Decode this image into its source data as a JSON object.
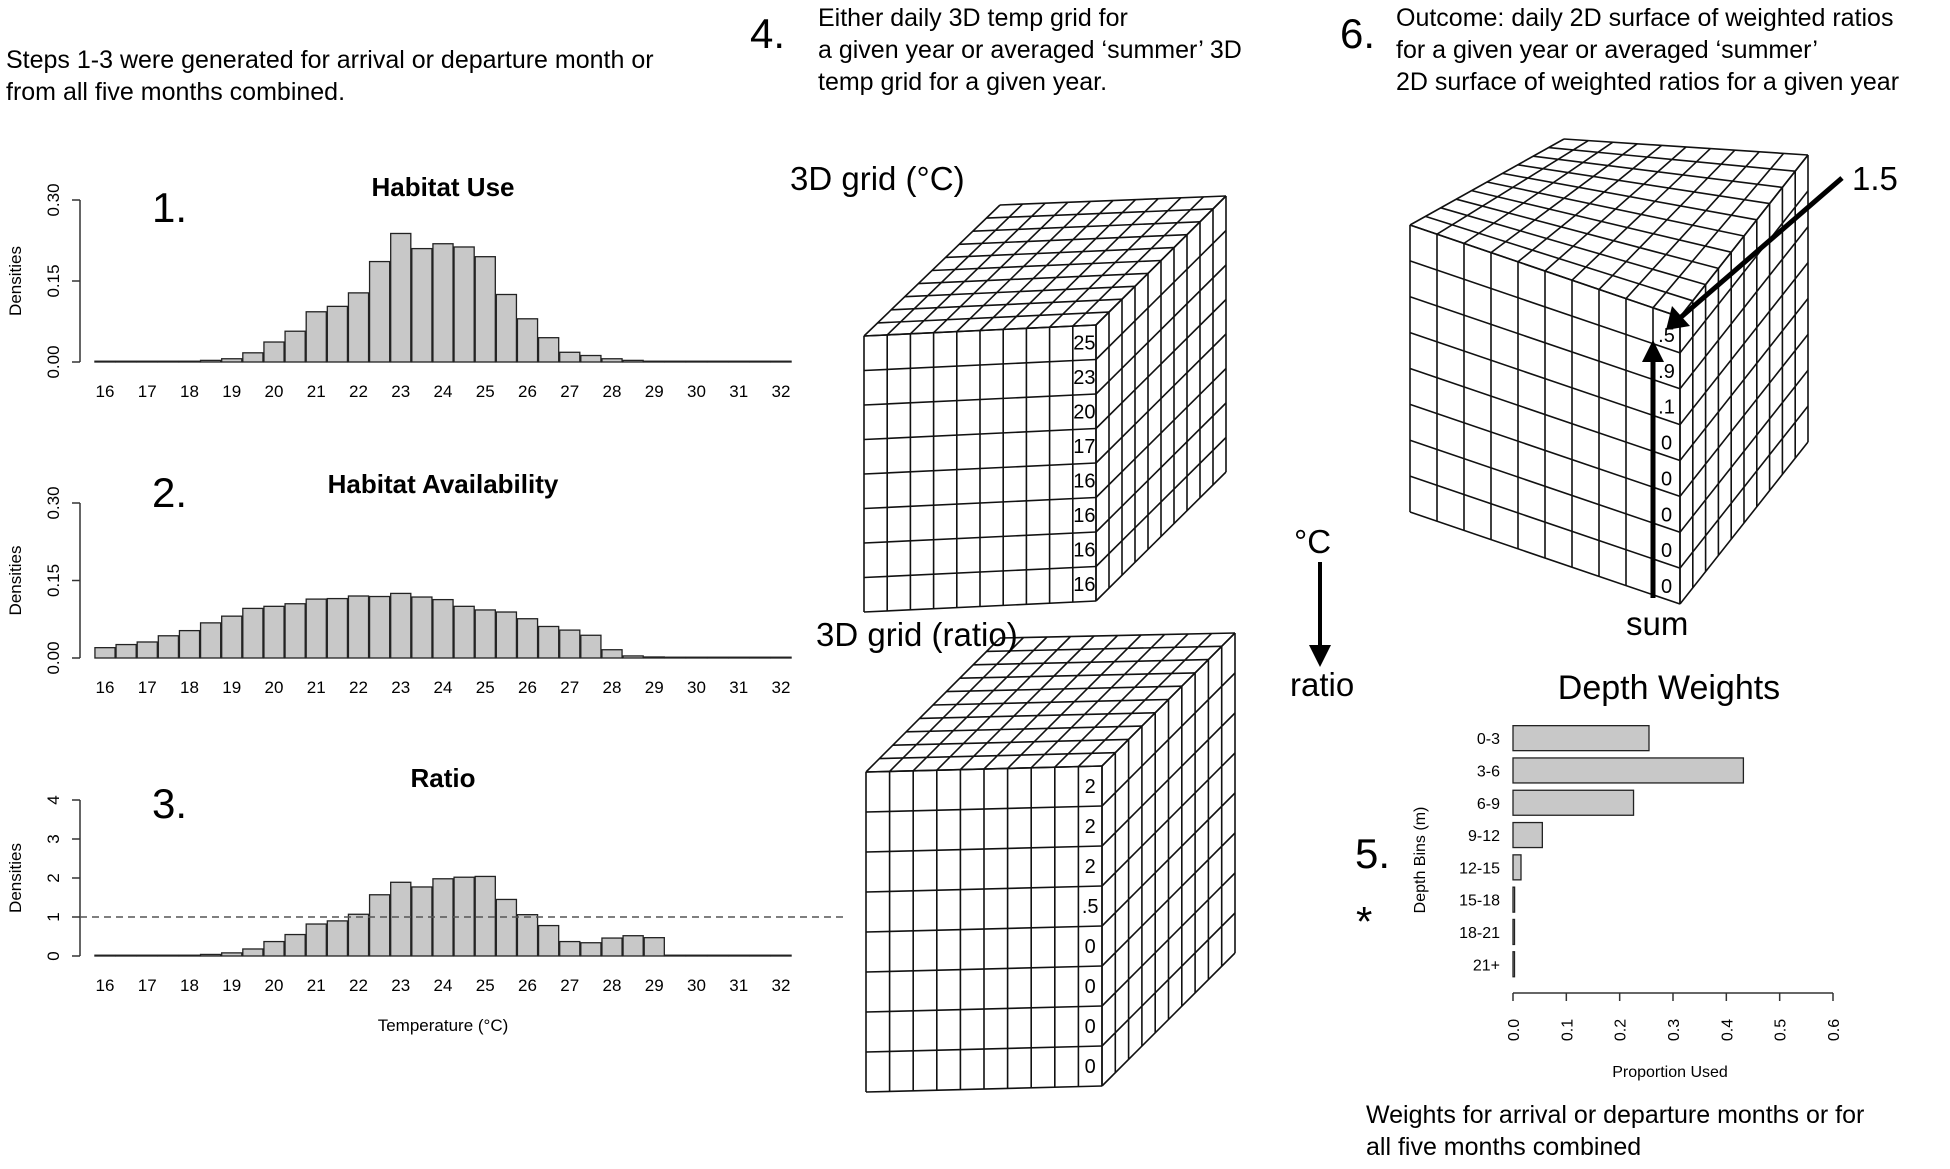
{
  "intro_note": "Steps 1-3 were generated for arrival or departure month or from all five months combined.",
  "histograms": {
    "y_axis_label": "Densities",
    "x_ticks": [
      "16",
      "17",
      "18",
      "19",
      "20",
      "21",
      "22",
      "23",
      "24",
      "25",
      "26",
      "27",
      "28",
      "29",
      "30",
      "31",
      "32"
    ],
    "x_axis_label": "Temperature (°C)"
  },
  "steps": {
    "s1": "1.",
    "s2": "2.",
    "s3": "3.",
    "s4": "4.",
    "s5": "5.",
    "s6": "6."
  },
  "step4_text": "Either daily 3D temp grid for a given year or averaged ‘summer’ 3D temp grid for a given year.",
  "step6_text": "Outcome: daily 2D surface of weighted ratios for a given year or averaged ‘summer’ 2D surface of weighted ratios for a given year",
  "cube_temp": {
    "label": "3D grid (°C)",
    "column_values": [
      "25",
      "23",
      "20",
      "17",
      "16",
      "16",
      "16",
      "16"
    ]
  },
  "cube_ratio": {
    "label": "3D grid (ratio)",
    "column_values": [
      "2",
      "2",
      "2",
      ".5",
      "0",
      "0",
      "0",
      "0"
    ]
  },
  "cube_outcome": {
    "column_values": [
      ".5",
      ".9",
      ".1",
      "0",
      "0",
      "0",
      "0",
      "0"
    ],
    "top_value": "1.5",
    "sum_label": "sum"
  },
  "arrow_labels": {
    "from": "°C",
    "to": "ratio"
  },
  "asterisk": "*",
  "weights_note": "Weights for arrival or departure months or for all five months combined",
  "chart_data": [
    {
      "type": "bar",
      "title": "Habitat Use",
      "ylabel": "Densities",
      "xlabel": "",
      "x": [
        16,
        16.5,
        17,
        17.5,
        18,
        18.5,
        19,
        19.5,
        20,
        20.5,
        21,
        21.5,
        22,
        22.5,
        23,
        23.5,
        24,
        24.5,
        25,
        25.5,
        26,
        26.5,
        27,
        27.5,
        28,
        28.5,
        29,
        29.5,
        30,
        30.5,
        31,
        31.5,
        32
      ],
      "values": [
        0,
        0,
        0,
        0,
        0,
        0.003,
        0.006,
        0.017,
        0.037,
        0.057,
        0.093,
        0.103,
        0.128,
        0.186,
        0.238,
        0.21,
        0.219,
        0.213,
        0.195,
        0.125,
        0.08,
        0.045,
        0.018,
        0.012,
        0.006,
        0.003,
        0.001,
        0,
        0,
        0,
        0,
        0,
        0
      ],
      "xlim": [
        16,
        32
      ],
      "ylim": [
        0,
        0.3
      ],
      "yticks": [
        "0.00",
        "0.15",
        "0.30"
      ],
      "hline": null
    },
    {
      "type": "bar",
      "title": "Habitat Availability",
      "ylabel": "Densities",
      "xlabel": "",
      "x": [
        16,
        16.5,
        17,
        17.5,
        18,
        18.5,
        19,
        19.5,
        20,
        20.5,
        21,
        21.5,
        22,
        22.5,
        23,
        23.5,
        24,
        24.5,
        25,
        25.5,
        26,
        26.5,
        27,
        27.5,
        28,
        28.5,
        29,
        29.5,
        30,
        30.5,
        31,
        31.5,
        32
      ],
      "values": [
        0.02,
        0.026,
        0.031,
        0.043,
        0.053,
        0.068,
        0.081,
        0.096,
        0.1,
        0.105,
        0.114,
        0.115,
        0.12,
        0.119,
        0.125,
        0.118,
        0.113,
        0.1,
        0.093,
        0.089,
        0.076,
        0.061,
        0.054,
        0.044,
        0.016,
        0.004,
        0.002,
        0.001,
        0,
        0,
        0,
        0,
        0
      ],
      "xlim": [
        16,
        32
      ],
      "ylim": [
        0,
        0.3
      ],
      "yticks": [
        "0.00",
        "0.15",
        "0.30"
      ],
      "hline": null
    },
    {
      "type": "bar",
      "title": "Ratio",
      "ylabel": "Densities",
      "xlabel": "Temperature (°C)",
      "x": [
        16,
        16.5,
        17,
        17.5,
        18,
        18.5,
        19,
        19.5,
        20,
        20.5,
        21,
        21.5,
        22,
        22.5,
        23,
        23.5,
        24,
        24.5,
        25,
        25.5,
        26,
        26.5,
        27,
        27.5,
        28,
        28.5,
        29,
        29.5,
        30,
        30.5,
        31,
        31.5,
        32
      ],
      "values": [
        0,
        0,
        0,
        0,
        0.01,
        0.04,
        0.08,
        0.18,
        0.37,
        0.55,
        0.82,
        0.9,
        1.07,
        1.57,
        1.89,
        1.77,
        1.98,
        2.02,
        2.04,
        1.45,
        1.06,
        0.78,
        0.37,
        0.34,
        0.46,
        0.52,
        0.47,
        0,
        0,
        0,
        0,
        0,
        0
      ],
      "xlim": [
        16,
        32
      ],
      "ylim": [
        0,
        4
      ],
      "yticks": [
        "0",
        "1",
        "2",
        "3",
        "4"
      ],
      "hline": 1
    },
    {
      "type": "bar",
      "orientation": "horizontal",
      "title": "Depth Weights",
      "ylabel": "Depth Bins (m)",
      "xlabel": "Proportion Used",
      "categories": [
        "0-3",
        "3-6",
        "6-9",
        "9-12",
        "12-15",
        "15-18",
        "18-21",
        "21+"
      ],
      "values": [
        0.255,
        0.432,
        0.226,
        0.055,
        0.015,
        0.003,
        0.002,
        0.001
      ],
      "xlim": [
        0,
        0.6
      ],
      "xticks": [
        "0.0",
        "0.1",
        "0.2",
        "0.3",
        "0.4",
        "0.5",
        "0.6"
      ]
    }
  ]
}
